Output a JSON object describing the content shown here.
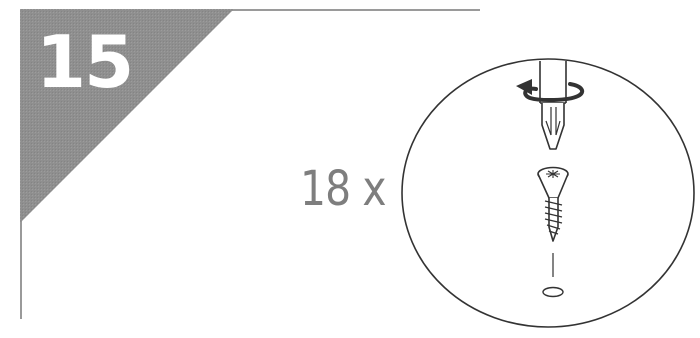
{
  "step": {
    "number": "15",
    "quantity": "18 x"
  },
  "colors": {
    "step_corner_fill": "#8f8f8f",
    "quantity_text": "#7e7e7e",
    "frame_line": "#9a9a9a",
    "line_art": "#333333"
  },
  "icons": {
    "detail": "screwdriver-screw-icon",
    "rotation": "clockwise-arrow-icon",
    "hole": "pilot-hole-icon"
  }
}
